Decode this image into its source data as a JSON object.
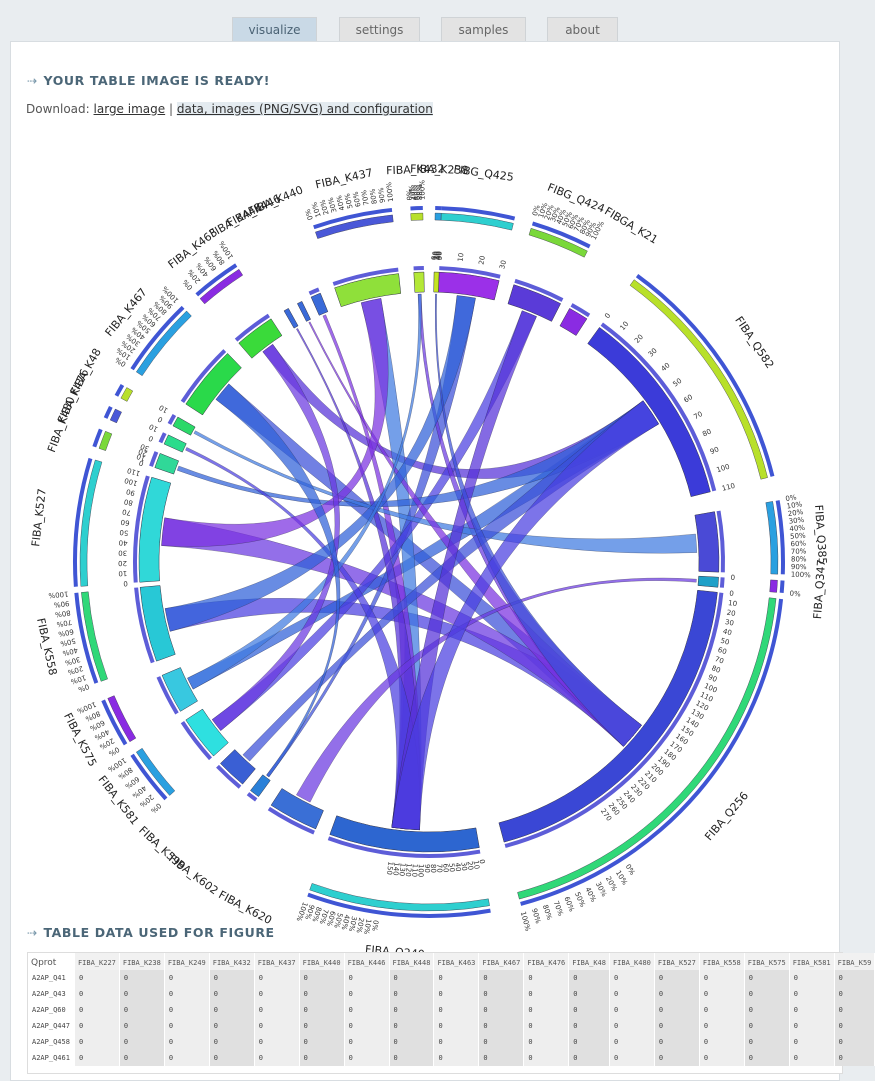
{
  "tabs": [
    {
      "label": "visualize",
      "active": true
    },
    {
      "label": "settings",
      "active": false
    },
    {
      "label": "samples",
      "active": false
    },
    {
      "label": "about",
      "active": false
    }
  ],
  "result": {
    "title": "YOUR TABLE IMAGE IS READY!",
    "download_label": "Download:",
    "download_large": "large image",
    "separator": "|",
    "download_data": "data, images (PNG/SVG) and configuration"
  },
  "chart_data": {
    "type": "chord",
    "segments": [
      {
        "name": "FIBG_Q425",
        "ticks": [
          "0",
          "10",
          "20",
          "30"
        ]
      },
      {
        "name": "FIBG_Q424",
        "ticks": [
          "0%",
          "10%",
          "20%",
          "30%",
          "40%",
          "50%",
          "60%",
          "70%",
          "80%",
          "90%",
          "100%"
        ]
      },
      {
        "name": "FIBGA_K21",
        "ticks": []
      },
      {
        "name": "FIBA_Q582",
        "ticks": [
          "0",
          "10",
          "20",
          "30",
          "40",
          "50",
          "60",
          "70",
          "80",
          "90",
          "100",
          "110"
        ]
      },
      {
        "name": "FIBA_Q385",
        "ticks": [
          "0%",
          "10%",
          "20%",
          "30%",
          "40%",
          "50%",
          "60%",
          "70%",
          "80%",
          "90%",
          "100%"
        ]
      },
      {
        "name": "FIBA_Q347",
        "ticks": [
          "0",
          "0%"
        ]
      },
      {
        "name": "FIBA_Q256",
        "ticks": [
          "0",
          "10",
          "20",
          "30",
          "40",
          "50",
          "60",
          "70",
          "80",
          "90",
          "100",
          "110",
          "120",
          "130",
          "140",
          "150",
          "160",
          "170",
          "180",
          "190",
          "200",
          "210",
          "220",
          "230",
          "240",
          "250",
          "260",
          "270",
          "0%",
          "10%",
          "20%",
          "30%",
          "40%",
          "50%",
          "60%",
          "70%",
          "80%",
          "90%",
          "100%"
        ]
      },
      {
        "name": "FIBA_Q240",
        "ticks": [
          "0",
          "10",
          "20",
          "30",
          "40",
          "50",
          "60",
          "70",
          "80",
          "90",
          "100",
          "110",
          "120",
          "130",
          "140",
          "150",
          "0%",
          "10%",
          "20%",
          "30%",
          "40%",
          "50%",
          "60%",
          "70%",
          "80%",
          "90%",
          "100%"
        ]
      },
      {
        "name": "FIBA_K620",
        "ticks": []
      },
      {
        "name": "FIBA_K602",
        "ticks": []
      },
      {
        "name": "FIBA_K599",
        "ticks": []
      },
      {
        "name": "FIBA_K581",
        "ticks": [
          "0%",
          "20%",
          "40%",
          "60%",
          "80%",
          "100%"
        ]
      },
      {
        "name": "FIBA_K575",
        "ticks": [
          "0%",
          "20%",
          "40%",
          "60%",
          "80%",
          "100%"
        ]
      },
      {
        "name": "FIBA_K558",
        "ticks": [
          "0%",
          "10%",
          "20%",
          "30%",
          "40%",
          "50%",
          "60%",
          "70%",
          "80%",
          "90%",
          "100%"
        ]
      },
      {
        "name": "FIBA_K527",
        "ticks": [
          "0",
          "10",
          "20",
          "30",
          "40",
          "50",
          "60",
          "70",
          "80",
          "90",
          "100",
          "110"
        ]
      },
      {
        "name": "FIBA_K480",
        "ticks": [
          "0",
          "10",
          "20",
          "30"
        ]
      },
      {
        "name": "FIBA_K476",
        "ticks": [
          "0",
          "10"
        ]
      },
      {
        "name": "FIBA_K48",
        "ticks": [
          "0",
          "10"
        ]
      },
      {
        "name": "FIBA_K467",
        "ticks": [
          "0%",
          "10%",
          "20%",
          "30%",
          "40%",
          "50%",
          "60%",
          "70%",
          "80%",
          "90%",
          "100%"
        ]
      },
      {
        "name": "FIBA_K463",
        "ticks": [
          "0%",
          "20%",
          "40%",
          "60%",
          "80%",
          "100%"
        ]
      },
      {
        "name": "FIBA_K448",
        "ticks": []
      },
      {
        "name": "FIBA_K446",
        "ticks": []
      },
      {
        "name": "FIBA_K440",
        "ticks": []
      },
      {
        "name": "FIBA_K437",
        "ticks": [
          "0%",
          "10%",
          "20%",
          "30%",
          "40%",
          "50%",
          "60%",
          "70%",
          "80%",
          "90%",
          "100%"
        ]
      },
      {
        "name": "FIBA_K432",
        "ticks": [
          "0%",
          "20%",
          "40%",
          "60%",
          "80%",
          "100%"
        ]
      },
      {
        "name": "FIBA_K238",
        "ticks": [
          "0",
          "10",
          "20",
          "30",
          "40",
          "50"
        ]
      }
    ]
  },
  "table_section": {
    "title": "TABLE DATA USED FOR FIGURE",
    "header_first": "Qprot",
    "columns": [
      "FIBA_K227",
      "FIBA_K238",
      "FIBA_K249",
      "FIBA_K432",
      "FIBA_K437",
      "FIBA_K440",
      "FIBA_K446",
      "FIBA_K448",
      "FIBA_K463",
      "FIBA_K467",
      "FIBA_K476",
      "FIBA_K48",
      "FIBA_K480",
      "FIBA_K527",
      "FIBA_K558",
      "FIBA_K575",
      "FIBA_K581",
      "FIBA_K59"
    ],
    "rows": [
      {
        "label": "A2AP_Q41",
        "values": [
          "0",
          "0",
          "0",
          "0",
          "0",
          "0",
          "0",
          "0",
          "0",
          "0",
          "0",
          "0",
          "0",
          "0",
          "0",
          "0",
          "0",
          "0"
        ]
      },
      {
        "label": "A2AP_Q43",
        "values": [
          "0",
          "0",
          "0",
          "0",
          "0",
          "0",
          "0",
          "0",
          "0",
          "0",
          "0",
          "0",
          "0",
          "0",
          "0",
          "0",
          "0",
          "0"
        ]
      },
      {
        "label": "A2AP_Q60",
        "values": [
          "0",
          "0",
          "0",
          "0",
          "0",
          "0",
          "0",
          "0",
          "0",
          "0",
          "0",
          "0",
          "0",
          "0",
          "0",
          "0",
          "0",
          "0"
        ]
      },
      {
        "label": "A2AP_Q447",
        "values": [
          "0",
          "0",
          "0",
          "0",
          "0",
          "0",
          "0",
          "0",
          "0",
          "0",
          "0",
          "0",
          "0",
          "0",
          "0",
          "0",
          "0",
          "0"
        ]
      },
      {
        "label": "A2AP_Q458",
        "values": [
          "0",
          "0",
          "0",
          "0",
          "0",
          "0",
          "0",
          "0",
          "0",
          "0",
          "0",
          "0",
          "0",
          "0",
          "0",
          "0",
          "0",
          "0"
        ]
      },
      {
        "label": "A2AP_Q461",
        "values": [
          "0",
          "0",
          "0",
          "0",
          "0",
          "0",
          "0",
          "0",
          "0",
          "0",
          "0",
          "0",
          "0",
          "0",
          "0",
          "0",
          "0",
          "0"
        ]
      }
    ]
  }
}
